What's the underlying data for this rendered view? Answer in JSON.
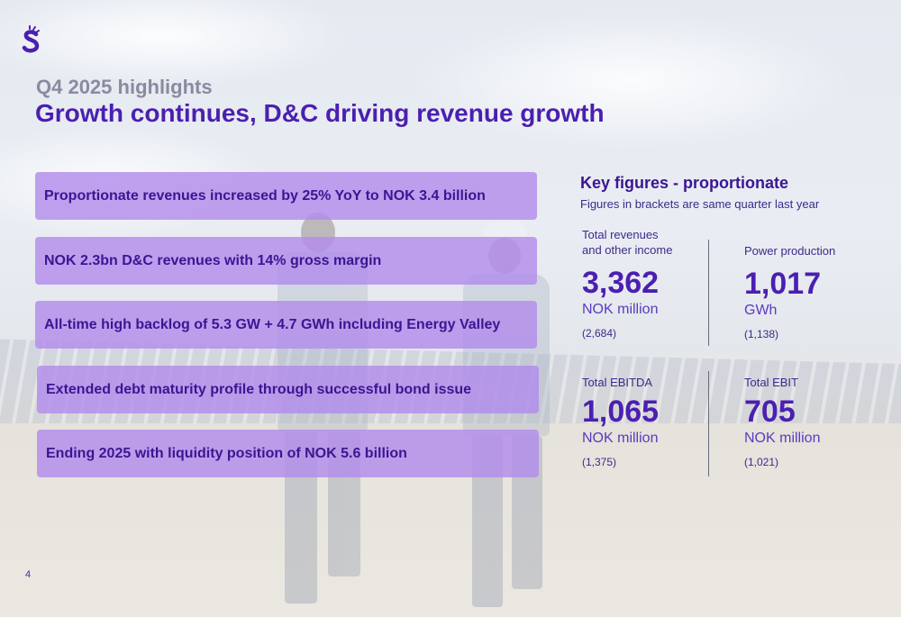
{
  "header": {
    "subtitle": "Q4 2025 highlights",
    "title": "Growth continues, D&C driving revenue growth"
  },
  "highlights": [
    "Proportionate revenues increased by 25% YoY to NOK 3.4 billion",
    "NOK 2.3bn D&C revenues with 14% gross margin",
    "All-time high backlog of 5.3 GW + 4.7 GWh including Energy Valley",
    "Extended debt maturity profile through successful bond issue",
    "Ending 2025 with liquidity position of NOK 5.6 billion"
  ],
  "key_figures": {
    "title": "Key figures - proportionate",
    "note": "Figures in brackets are same quarter last year",
    "metrics": [
      {
        "label_line1": "Total revenues",
        "label_line2": "and other income",
        "value": "3,362",
        "unit": "NOK million",
        "previous": "(2,684)"
      },
      {
        "label_line1": "Power production",
        "label_line2": "",
        "value": "1,017",
        "unit": "GWh",
        "previous": "(1,138)"
      },
      {
        "label_line1": "Total EBITDA",
        "label_line2": "",
        "value": "1,065",
        "unit": "NOK million",
        "previous": "(1,375)"
      },
      {
        "label_line1": "Total EBIT",
        "label_line2": "",
        "value": "705",
        "unit": "NOK million",
        "previous": "(1,021)"
      }
    ]
  },
  "footer": {
    "page_number": "4"
  },
  "colors": {
    "primary": "#4b1fb0",
    "highlight_box": "#b28cec",
    "subtitle": "#8a8aa0"
  },
  "icons": {
    "logo": "scatec-logo-icon"
  }
}
